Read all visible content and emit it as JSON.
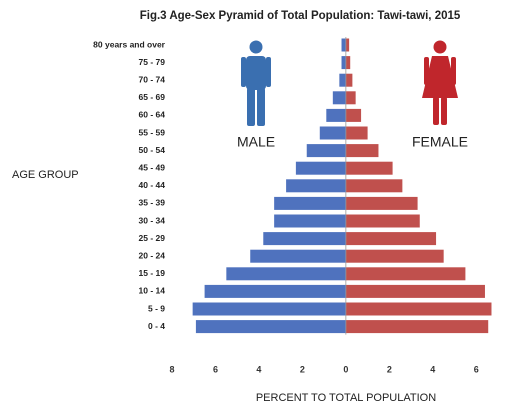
{
  "chart_data": {
    "type": "pyramid",
    "title": "Fig.3 Age-Sex Pyramid of Total Population: Tawi-tawi, 2015",
    "y_label": "AGE GROUP",
    "x_label": "PERCENT TO TOTAL POPULATION",
    "categories": [
      "80 years and over",
      "75 - 79",
      "70 - 74",
      "65 - 69",
      "60 - 64",
      "55 - 59",
      "50 - 54",
      "45 - 49",
      "40 - 44",
      "35 - 39",
      "30 - 34",
      "25 - 29",
      "20 - 24",
      "15 - 19",
      "10 - 14",
      "5 - 9",
      "0 - 4"
    ],
    "series": [
      {
        "name": "MALE",
        "color": "#4f72be",
        "values": [
          -0.2,
          -0.2,
          -0.3,
          -0.6,
          -0.9,
          -1.2,
          -1.8,
          -2.3,
          -2.75,
          -3.3,
          -3.3,
          -3.8,
          -4.4,
          -5.5,
          -6.5,
          -7.05,
          -6.9
        ]
      },
      {
        "name": "FEMALE",
        "color": "#c0504d",
        "values": [
          0.15,
          0.2,
          0.3,
          0.45,
          0.7,
          1.0,
          1.5,
          2.15,
          2.6,
          3.3,
          3.4,
          4.15,
          4.5,
          5.5,
          6.4,
          6.7,
          6.55
        ]
      }
    ],
    "xlim": [
      -8,
      7
    ],
    "xticks": [
      {
        "value": -8,
        "label": "8"
      },
      {
        "value": -6,
        "label": "6"
      },
      {
        "value": -4,
        "label": "4"
      },
      {
        "value": -2,
        "label": "2"
      },
      0,
      2,
      4,
      6
    ]
  }
}
